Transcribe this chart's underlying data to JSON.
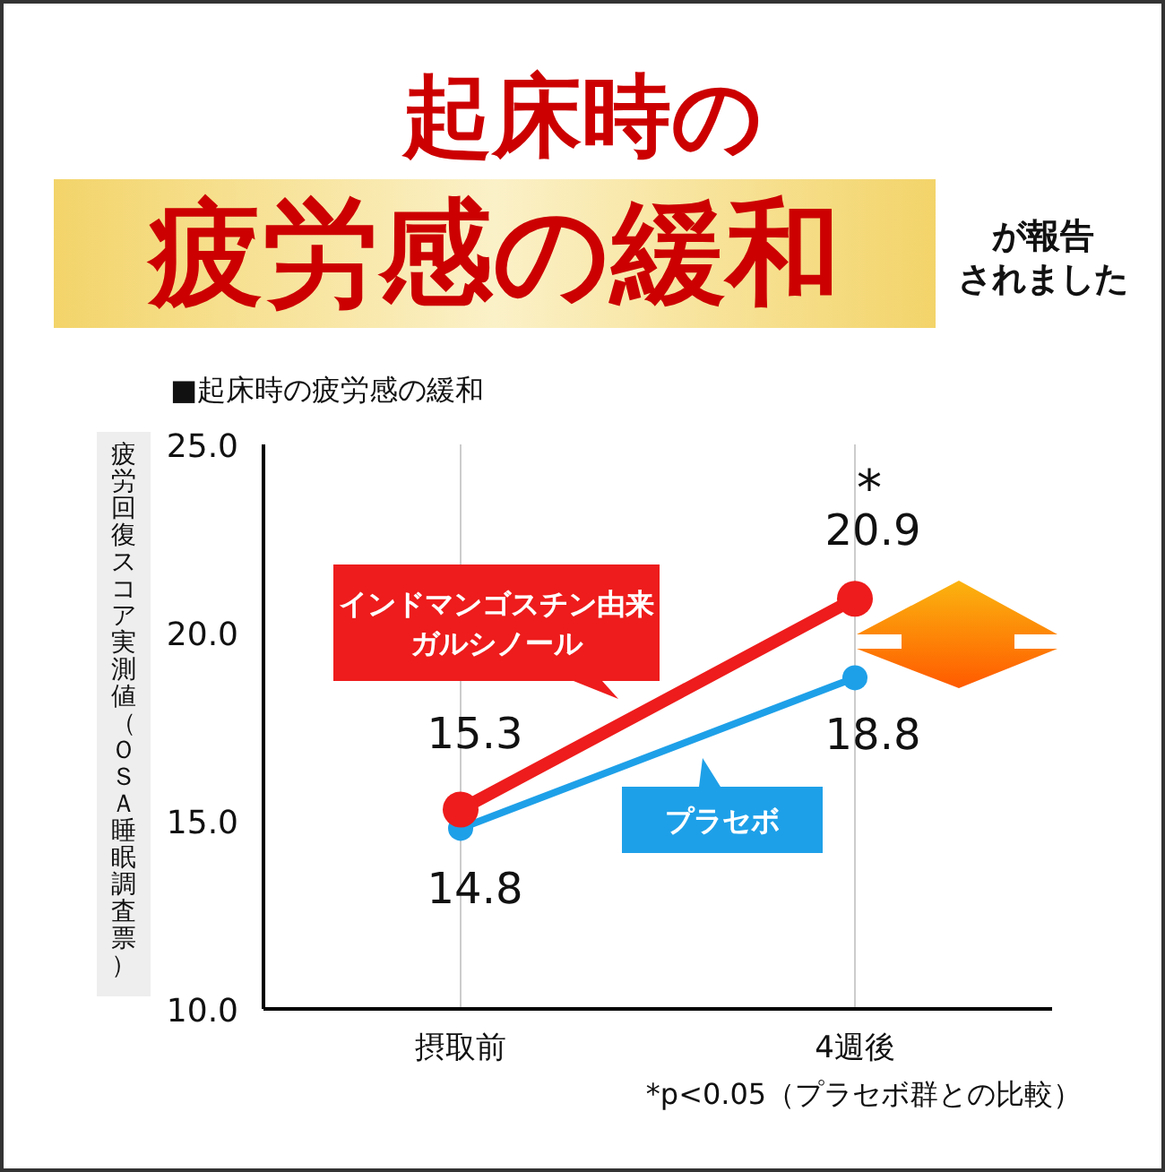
{
  "chart_data": {
    "type": "line",
    "title": "起床時の",
    "subtitle": "疲労感の緩和",
    "ylabel": "疲労回復スコア実測値（ＯＳＡ睡眠調査票）",
    "categories": [
      "摂取前",
      "4週後"
    ],
    "series": [
      {
        "name": "インドマンゴスチン由来ガルシノール",
        "color": "#ee1c1c",
        "values": [
          15.3,
          20.9
        ]
      },
      {
        "name": "プラセボ",
        "color": "#1ea0e8",
        "values": [
          14.8,
          18.8
        ]
      }
    ],
    "ylim": [
      10,
      25
    ],
    "yticks": [
      {
        "value": 10,
        "label": "10.0"
      },
      {
        "value": 15,
        "label": "15.0"
      },
      {
        "value": 20,
        "label": "20.0"
      },
      {
        "value": 25,
        "label": "25.0"
      }
    ],
    "grid": "x",
    "marker": "circle",
    "line_style": "solid",
    "data_labels": true,
    "annotations": [
      "が報告されました",
      "■起床時の疲労感の緩和",
      "*p<0.05（プラセボ群との比較）",
      {
        "text": "*",
        "x": "4週後",
        "y": 20.9
      }
    ]
  }
}
